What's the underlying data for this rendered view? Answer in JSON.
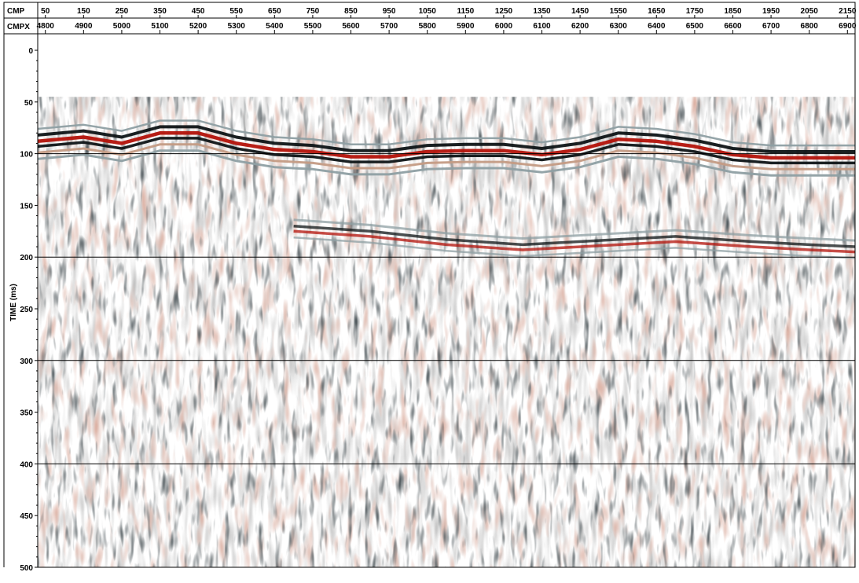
{
  "chart_data": {
    "type": "heatmap",
    "description_of_content": "",
    "x_axes": [
      {
        "label": "CMP",
        "ticks": [
          50,
          150,
          250,
          350,
          450,
          550,
          650,
          750,
          850,
          950,
          1050,
          1150,
          1250,
          1350,
          1450,
          1550,
          1650,
          1750,
          1850,
          1950,
          2050,
          2150
        ]
      },
      {
        "label": "CMPX",
        "ticks": [
          4800,
          4900,
          5000,
          5100,
          5200,
          5300,
          5400,
          5500,
          5600,
          5700,
          5800,
          5900,
          6000,
          6100,
          6200,
          6300,
          6400,
          6500,
          6600,
          6700,
          6800,
          6900
        ]
      }
    ],
    "ylabel": "TIME (ms)",
    "yticks": [
      0,
      50,
      100,
      150,
      200,
      250,
      300,
      350,
      400,
      450,
      500
    ],
    "ylim": [
      0,
      500
    ],
    "xlim_cmp": [
      30,
      2170
    ],
    "gridlines_ms": [
      100,
      200,
      300,
      400
    ],
    "colors": {
      "positive": "#b3120a",
      "positive_weak": "#c49b84",
      "negative": "#0e1416",
      "negative_weak": "#8e9fa3",
      "background": "#ffffff"
    },
    "horizons": [
      {
        "name": "",
        "points_cmp_ms": [
          [
            30,
            88
          ],
          [
            150,
            84
          ],
          [
            250,
            90
          ],
          [
            350,
            80
          ],
          [
            450,
            80
          ],
          [
            550,
            90
          ],
          [
            650,
            96
          ],
          [
            750,
            98
          ],
          [
            850,
            103
          ],
          [
            950,
            103
          ],
          [
            1050,
            98
          ],
          [
            1150,
            97
          ],
          [
            1250,
            97
          ],
          [
            1350,
            101
          ],
          [
            1450,
            96
          ],
          [
            1550,
            86
          ],
          [
            1650,
            88
          ],
          [
            1750,
            93
          ],
          [
            1850,
            101
          ],
          [
            1950,
            104
          ],
          [
            2050,
            104
          ],
          [
            2170,
            104
          ]
        ]
      },
      {
        "name": "",
        "points_cmp_ms": [
          [
            700,
            170
          ],
          [
            900,
            175
          ],
          [
            1100,
            183
          ],
          [
            1300,
            188
          ],
          [
            1500,
            184
          ],
          [
            1700,
            180
          ],
          [
            1900,
            185
          ],
          [
            2050,
            188
          ],
          [
            2170,
            190
          ]
        ]
      }
    ]
  }
}
